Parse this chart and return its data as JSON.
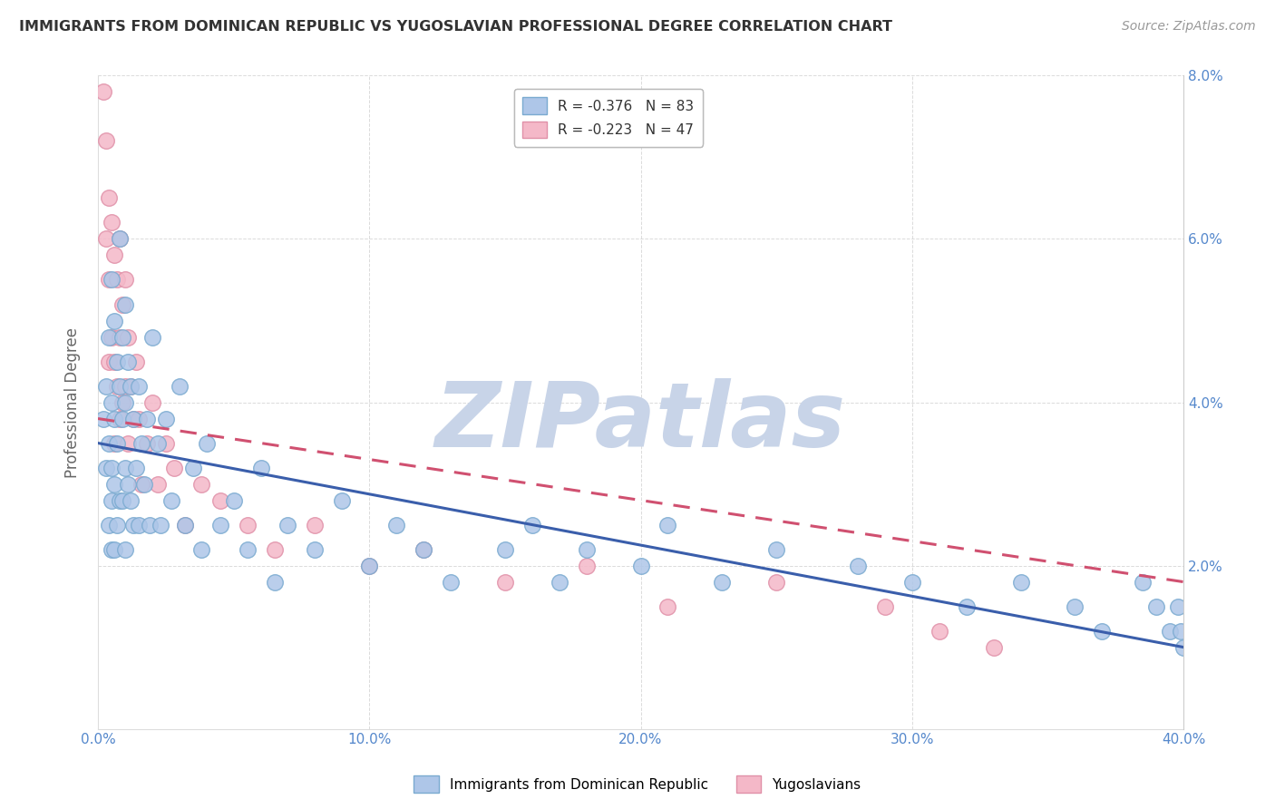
{
  "title": "IMMIGRANTS FROM DOMINICAN REPUBLIC VS YUGOSLAVIAN PROFESSIONAL DEGREE CORRELATION CHART",
  "source": "Source: ZipAtlas.com",
  "ylabel": "Professional Degree",
  "xlim": [
    0.0,
    0.4
  ],
  "ylim": [
    0.0,
    0.08
  ],
  "xticks": [
    0.0,
    0.1,
    0.2,
    0.3,
    0.4
  ],
  "yticks": [
    0.0,
    0.02,
    0.04,
    0.06,
    0.08
  ],
  "xtick_labels": [
    "0.0%",
    "10.0%",
    "20.0%",
    "30.0%",
    "40.0%"
  ],
  "ytick_labels_right": [
    "",
    "2.0%",
    "4.0%",
    "6.0%",
    "8.0%"
  ],
  "legend_entries": [
    {
      "label": "R = -0.376   N = 83",
      "color": "#aec6e8",
      "edge": "#7aaad0"
    },
    {
      "label": "R = -0.223   N = 47",
      "color": "#f4b8c8",
      "edge": "#e090a8"
    }
  ],
  "legend_bottom": [
    {
      "label": "Immigrants from Dominican Republic",
      "color": "#aec6e8",
      "edge": "#7aaad0"
    },
    {
      "label": "Yugoslavians",
      "color": "#f4b8c8",
      "edge": "#e090a8"
    }
  ],
  "blue_line_x0": 0.0,
  "blue_line_y0": 0.035,
  "blue_line_x1": 0.4,
  "blue_line_y1": 0.01,
  "pink_line_x0": 0.0,
  "pink_line_y0": 0.038,
  "pink_line_x1": 0.4,
  "pink_line_y1": 0.018,
  "blue_scatter_x": [
    0.002,
    0.003,
    0.003,
    0.004,
    0.004,
    0.004,
    0.005,
    0.005,
    0.005,
    0.005,
    0.005,
    0.006,
    0.006,
    0.006,
    0.006,
    0.007,
    0.007,
    0.007,
    0.008,
    0.008,
    0.008,
    0.009,
    0.009,
    0.009,
    0.01,
    0.01,
    0.01,
    0.01,
    0.011,
    0.011,
    0.012,
    0.012,
    0.013,
    0.013,
    0.014,
    0.015,
    0.015,
    0.016,
    0.017,
    0.018,
    0.019,
    0.02,
    0.022,
    0.023,
    0.025,
    0.027,
    0.03,
    0.032,
    0.035,
    0.038,
    0.04,
    0.045,
    0.05,
    0.055,
    0.06,
    0.065,
    0.07,
    0.08,
    0.09,
    0.1,
    0.11,
    0.12,
    0.13,
    0.15,
    0.16,
    0.17,
    0.18,
    0.2,
    0.21,
    0.23,
    0.25,
    0.28,
    0.3,
    0.32,
    0.34,
    0.36,
    0.37,
    0.385,
    0.39,
    0.395,
    0.398,
    0.399,
    0.4
  ],
  "blue_scatter_y": [
    0.038,
    0.042,
    0.032,
    0.048,
    0.035,
    0.025,
    0.055,
    0.04,
    0.032,
    0.028,
    0.022,
    0.05,
    0.038,
    0.03,
    0.022,
    0.045,
    0.035,
    0.025,
    0.06,
    0.042,
    0.028,
    0.048,
    0.038,
    0.028,
    0.052,
    0.04,
    0.032,
    0.022,
    0.045,
    0.03,
    0.042,
    0.028,
    0.038,
    0.025,
    0.032,
    0.042,
    0.025,
    0.035,
    0.03,
    0.038,
    0.025,
    0.048,
    0.035,
    0.025,
    0.038,
    0.028,
    0.042,
    0.025,
    0.032,
    0.022,
    0.035,
    0.025,
    0.028,
    0.022,
    0.032,
    0.018,
    0.025,
    0.022,
    0.028,
    0.02,
    0.025,
    0.022,
    0.018,
    0.022,
    0.025,
    0.018,
    0.022,
    0.02,
    0.025,
    0.018,
    0.022,
    0.02,
    0.018,
    0.015,
    0.018,
    0.015,
    0.012,
    0.018,
    0.015,
    0.012,
    0.015,
    0.012,
    0.01
  ],
  "pink_scatter_x": [
    0.002,
    0.003,
    0.003,
    0.004,
    0.004,
    0.004,
    0.005,
    0.005,
    0.006,
    0.006,
    0.006,
    0.007,
    0.007,
    0.008,
    0.008,
    0.008,
    0.009,
    0.009,
    0.01,
    0.01,
    0.011,
    0.011,
    0.012,
    0.013,
    0.014,
    0.015,
    0.016,
    0.018,
    0.02,
    0.022,
    0.025,
    0.028,
    0.032,
    0.038,
    0.045,
    0.055,
    0.065,
    0.08,
    0.1,
    0.12,
    0.15,
    0.18,
    0.21,
    0.25,
    0.29,
    0.31,
    0.33
  ],
  "pink_scatter_y": [
    0.078,
    0.072,
    0.06,
    0.065,
    0.055,
    0.045,
    0.062,
    0.048,
    0.058,
    0.045,
    0.035,
    0.055,
    0.042,
    0.06,
    0.048,
    0.038,
    0.052,
    0.04,
    0.055,
    0.042,
    0.048,
    0.035,
    0.042,
    0.038,
    0.045,
    0.038,
    0.03,
    0.035,
    0.04,
    0.03,
    0.035,
    0.032,
    0.025,
    0.03,
    0.028,
    0.025,
    0.022,
    0.025,
    0.02,
    0.022,
    0.018,
    0.02,
    0.015,
    0.018,
    0.015,
    0.012,
    0.01
  ],
  "watermark_text": "ZIPatlas",
  "watermark_color": "#c8d4e8",
  "blue_dot_color": "#aec6e8",
  "blue_dot_edge": "#7aaad0",
  "pink_dot_color": "#f4b8c8",
  "pink_dot_edge": "#e090a8",
  "line_blue_color": "#3a5eab",
  "line_pink_color": "#d05070",
  "bg_color": "#ffffff",
  "grid_color": "#cccccc",
  "tick_label_color": "#5588cc",
  "ytick_label_color_right": "#5588cc"
}
